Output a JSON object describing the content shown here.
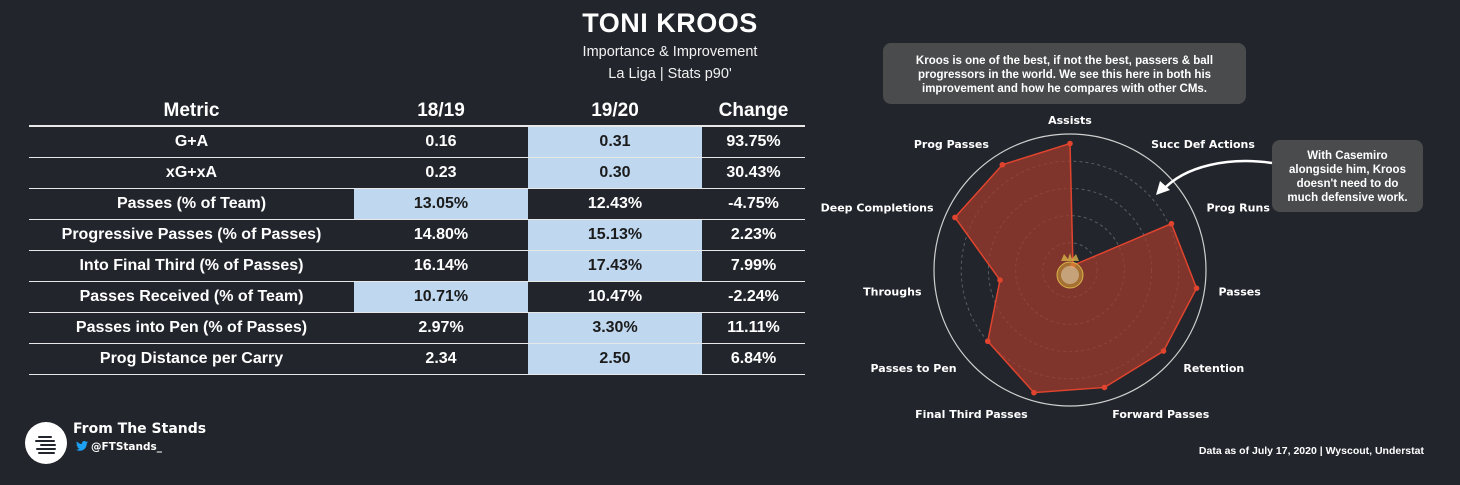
{
  "header": {
    "title": "TONI KROOS",
    "subtitle_1": "Importance & Improvement",
    "subtitle_2": "La Liga | Stats p90'"
  },
  "colors": {
    "background": "#22262c",
    "highlight": "#bfd8f0",
    "radar_fill": "#a33a2c",
    "radar_stroke": "#e0442e"
  },
  "table": {
    "columns": [
      "Metric",
      "18/19",
      "19/20",
      "Change"
    ],
    "rows": [
      {
        "metric": "G+A",
        "y1819": "0.16",
        "y1920": "0.31",
        "change": "93.75%",
        "highlight": "y1920"
      },
      {
        "metric": "xG+xA",
        "y1819": "0.23",
        "y1920": "0.30",
        "change": "30.43%",
        "highlight": "y1920"
      },
      {
        "metric": "Passes (% of Team)",
        "y1819": "13.05%",
        "y1920": "12.43%",
        "change": "-4.75%",
        "highlight": "y1819"
      },
      {
        "metric": "Progressive Passes (% of Passes)",
        "y1819": "14.80%",
        "y1920": "15.13%",
        "change": "2.23%",
        "highlight": "y1920"
      },
      {
        "metric": "Into Final Third (% of Passes)",
        "y1819": "16.14%",
        "y1920": "17.43%",
        "change": "7.99%",
        "highlight": "y1920"
      },
      {
        "metric": "Passes Received (% of Team)",
        "y1819": "10.71%",
        "y1920": "10.47%",
        "change": "-2.24%",
        "highlight": "y1819"
      },
      {
        "metric": "Passes into Pen (% of Passes)",
        "y1819": "2.97%",
        "y1920": "3.30%",
        "change": "11.11%",
        "highlight": "y1920"
      },
      {
        "metric": "Prog Distance per Carry",
        "y1819": "2.34",
        "y1920": "2.50",
        "change": "6.84%",
        "highlight": "y1920"
      }
    ]
  },
  "notes": {
    "top": "Kroos is one of the best, if not the best, passers & ball progressors in the world. We see this here in both his improvement and how he compares with other CMs.",
    "side": "With Casemiro alongside him, Kroos doesn't need to do much defensive work."
  },
  "chart_data": {
    "type": "radar",
    "axes": [
      "Assists",
      "Succ Def Actions",
      "Prog Runs",
      "Passes",
      "Retention",
      "Forward Passes",
      "Final Third Passes",
      "Passes to Pen",
      "Throughs",
      "Deep Completions",
      "Prog Passes"
    ],
    "values": [
      0.93,
      0.04,
      0.82,
      0.94,
      0.91,
      0.9,
      0.94,
      0.8,
      0.52,
      0.93,
      0.92
    ],
    "rlim": [
      0,
      1
    ],
    "grid": true,
    "center_icon": "real-madrid-crest"
  },
  "brand": {
    "name": "From The Stands",
    "handle": "@FTStands_",
    "icon": "twitter-bird-icon"
  },
  "footer": {
    "source": "Data as of July 17, 2020 | Wyscout, Understat"
  }
}
